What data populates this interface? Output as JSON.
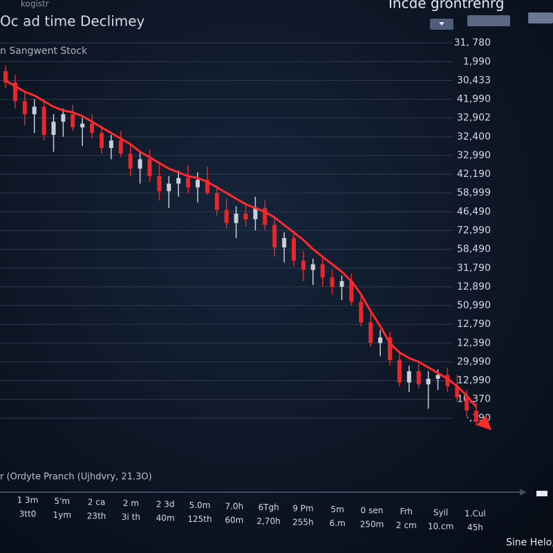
{
  "chart_data": {
    "type": "candlestick",
    "title": "Oc ad time Declimey",
    "subtitle": "n Sangwent Stock",
    "corner_label": "kogistr",
    "header_right": "Incde grontrenrg",
    "footer_label": "r (Ordyte Pranch (Ujhdvry, 21.3O)",
    "side_label": "Sine Helo;",
    "grid": true,
    "up_color": "#c9ced8",
    "down_color": "#e8262b",
    "ylim": [
      0,
      22
    ],
    "yticks": [
      {
        "value": 21,
        "label": "31, 780"
      },
      {
        "value": 20,
        "label": "1,990"
      },
      {
        "value": 19,
        "label": "30,433"
      },
      {
        "value": 18,
        "label": "41,990"
      },
      {
        "value": 17,
        "label": "32,902"
      },
      {
        "value": 16,
        "label": "32,400"
      },
      {
        "value": 15,
        "label": "32,990"
      },
      {
        "value": 14,
        "label": "42,190"
      },
      {
        "value": 13,
        "label": "58,999"
      },
      {
        "value": 12,
        "label": "46,490"
      },
      {
        "value": 11,
        "label": "72,990"
      },
      {
        "value": 10,
        "label": "58,490"
      },
      {
        "value": 9,
        "label": "31,790"
      },
      {
        "value": 8,
        "label": "12,890"
      },
      {
        "value": 7,
        "label": "50,990"
      },
      {
        "value": 6,
        "label": "12,790"
      },
      {
        "value": 5,
        "label": "12,390"
      },
      {
        "value": 4,
        "label": "29,990"
      },
      {
        "value": 3,
        "label": "12,990"
      },
      {
        "value": 2,
        "label": "10,370"
      },
      {
        "value": 1,
        "label": "·,190"
      }
    ],
    "open": [
      19.5,
      18.9,
      17.9,
      17.2,
      17.6,
      16.1,
      16.8,
      17.2,
      16.5,
      16.7,
      16.2,
      15.4,
      15.8,
      15.1,
      14.3,
      14.8,
      13.9,
      13.1,
      13.5,
      13.8,
      13.3,
      13.7,
      13.0,
      12.1,
      11.4,
      11.9,
      11.6,
      12.2,
      11.3,
      10.1,
      10.6,
      9.4,
      8.9,
      9.2,
      8.5,
      8.0,
      8.3,
      7.2,
      6.1,
      5.0,
      5.3,
      4.1,
      2.9,
      3.5,
      2.8,
      3.1,
      3.3,
      2.7,
      2.1,
      1.4
    ],
    "high": [
      19.8,
      19.3,
      18.4,
      18.0,
      17.9,
      17.2,
      17.5,
      17.7,
      17.0,
      17.2,
      16.6,
      16.1,
      16.3,
      15.6,
      15.2,
      15.3,
      14.6,
      13.9,
      14.2,
      14.5,
      14.1,
      14.4,
      13.4,
      12.7,
      12.3,
      12.5,
      12.8,
      12.6,
      11.7,
      10.9,
      11.0,
      9.9,
      9.5,
      9.6,
      8.9,
      8.6,
      8.7,
      7.6,
      6.6,
      5.7,
      5.6,
      4.6,
      3.8,
      3.9,
      3.5,
      3.6,
      3.7,
      3.3,
      2.5,
      1.8
    ],
    "low": [
      18.6,
      17.5,
      16.6,
      16.2,
      15.8,
      15.2,
      16.0,
      16.3,
      15.5,
      15.9,
      15.1,
      14.8,
      14.9,
      13.9,
      13.5,
      13.6,
      12.6,
      12.2,
      12.8,
      13.0,
      12.5,
      12.9,
      11.8,
      11.1,
      10.6,
      11.2,
      11.0,
      11.0,
      9.6,
      9.3,
      9.1,
      8.3,
      8.1,
      8.0,
      7.6,
      7.3,
      7.0,
      5.9,
      4.8,
      4.3,
      3.8,
      2.7,
      2.4,
      2.6,
      1.5,
      2.5,
      2.4,
      1.9,
      1.1,
      0.6
    ],
    "close": [
      18.9,
      17.9,
      17.2,
      17.6,
      16.1,
      16.8,
      17.2,
      16.5,
      16.7,
      16.2,
      15.4,
      15.8,
      15.1,
      14.3,
      14.8,
      13.9,
      13.1,
      13.5,
      13.8,
      13.3,
      13.7,
      13.0,
      12.1,
      11.4,
      11.9,
      11.6,
      12.2,
      11.3,
      10.1,
      10.6,
      9.4,
      8.9,
      9.2,
      8.5,
      8.0,
      8.3,
      7.2,
      6.1,
      5.0,
      5.3,
      4.1,
      2.9,
      3.5,
      2.8,
      3.1,
      3.3,
      2.7,
      2.1,
      1.4,
      0.8
    ],
    "ma": {
      "color": "#ff2a2a",
      "values": [
        19.0,
        18.7,
        18.4,
        18.2,
        17.9,
        17.6,
        17.4,
        17.3,
        17.1,
        16.8,
        16.5,
        16.2,
        15.9,
        15.6,
        15.2,
        14.9,
        14.6,
        14.3,
        14.1,
        13.9,
        13.8,
        13.6,
        13.3,
        13.0,
        12.7,
        12.4,
        12.2,
        12.0,
        11.7,
        11.3,
        10.9,
        10.5,
        10.0,
        9.6,
        9.2,
        8.8,
        8.3,
        7.6,
        6.7,
        5.9,
        5.0,
        4.5,
        4.2,
        4.0,
        3.7,
        3.4,
        3.1,
        2.7,
        2.2,
        1.6
      ]
    },
    "x_labels": [
      [
        "1 3m",
        "3tt0"
      ],
      [
        "5'm",
        "1ym"
      ],
      [
        "2 ca",
        "23th"
      ],
      [
        "2 m",
        "3i th"
      ],
      [
        "2 3d",
        "40m"
      ],
      [
        "5.0m",
        "125th"
      ],
      [
        "7.0h",
        "60m"
      ],
      [
        "6Tgh",
        "2,70h"
      ],
      [
        "9 Pm",
        "255h"
      ],
      [
        "5m",
        "6.m"
      ],
      [
        "0 sen",
        "250m"
      ],
      [
        "Frh",
        "2 cm"
      ],
      [
        "Syil",
        "10.cm"
      ],
      [
        "1.Cul",
        "45h"
      ]
    ]
  }
}
